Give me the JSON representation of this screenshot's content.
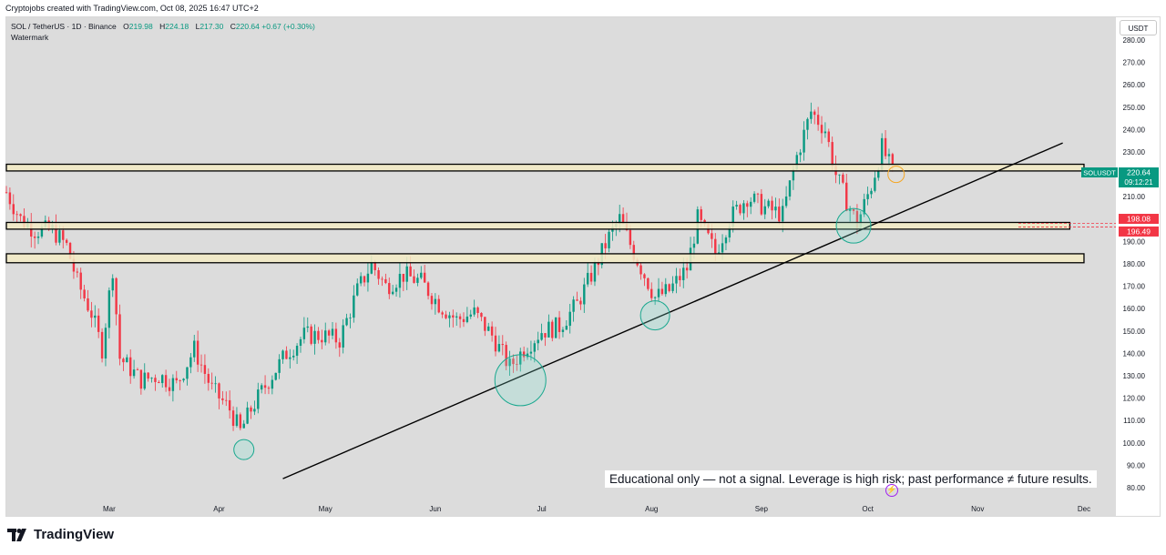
{
  "header": {
    "created_by": "Cryptojobs created with TradingView.com, Oct 08, 2025 16:47 UTC+2",
    "symbol_desc": "SOL / TetherUS · 1D · Binance",
    "o_label": "O",
    "o_value": "219.98",
    "h_label": "H",
    "h_value": "224.18",
    "l_label": "L",
    "l_value": "217.30",
    "c_label": "C",
    "c_value": "220.64 +0.67 (+0.30%)",
    "watermark_label": "Watermark"
  },
  "currency_button": "USDT",
  "disclaimer": "Educational only — not a signal. Leverage is high risk; past performance ≠ future results.",
  "brand": "TradingView",
  "colors": {
    "up": "#089981",
    "down": "#f23645",
    "zone_fill": "#f3ebc4",
    "plot_bg": "#dcdcdc",
    "alert_red": "#f23645"
  },
  "icons": {
    "bolt": "lightning-icon",
    "logo": "tradingview-logo-icon"
  },
  "chart_data": {
    "type": "candlestick",
    "symbol": "SOLUSDT",
    "ylim": [
      80,
      280
    ],
    "y_ticks": [
      "280.00",
      "270.00",
      "260.00",
      "250.00",
      "240.00",
      "230.00",
      "220.00",
      "210.00",
      "200.00",
      "190.00",
      "180.00",
      "170.00",
      "160.00",
      "150.00",
      "140.00",
      "130.00",
      "120.00",
      "110.00",
      "100.00",
      "90.00",
      "80.00"
    ],
    "x_ticks": [
      "Mar",
      "Apr",
      "May",
      "Jun",
      "Jul",
      "Aug",
      "Sep",
      "Oct",
      "Nov",
      "Dec"
    ],
    "x_tick_dates": [
      "2025-03-01",
      "2025-04-01",
      "2025-05-01",
      "2025-06-01",
      "2025-07-01",
      "2025-08-01",
      "2025-09-01",
      "2025-10-01",
      "2025-11-01",
      "2025-12-01"
    ],
    "x_range": [
      "2025-01-31",
      "2025-12-10"
    ],
    "price_path": [
      [
        "2025-01-31",
        212
      ],
      [
        "2025-02-04",
        200
      ],
      [
        "2025-02-08",
        195
      ],
      [
        "2025-02-13",
        195
      ],
      [
        "2025-02-17",
        188
      ],
      [
        "2025-02-20",
        172
      ],
      [
        "2025-02-24",
        158
      ],
      [
        "2025-02-27",
        142
      ],
      [
        "2025-03-02",
        178
      ],
      [
        "2025-03-04",
        138
      ],
      [
        "2025-03-10",
        128
      ],
      [
        "2025-03-15",
        130
      ],
      [
        "2025-03-20",
        126
      ],
      [
        "2025-03-25",
        142
      ],
      [
        "2025-03-30",
        124
      ],
      [
        "2025-04-04",
        115
      ],
      [
        "2025-04-07",
        105
      ],
      [
        "2025-04-10",
        115
      ],
      [
        "2025-04-15",
        128
      ],
      [
        "2025-04-20",
        140
      ],
      [
        "2025-04-25",
        148
      ],
      [
        "2025-04-30",
        148
      ],
      [
        "2025-05-05",
        146
      ],
      [
        "2025-05-10",
        168
      ],
      [
        "2025-05-14",
        180
      ],
      [
        "2025-05-18",
        170
      ],
      [
        "2025-05-23",
        175
      ],
      [
        "2025-05-28",
        172
      ],
      [
        "2025-06-02",
        162
      ],
      [
        "2025-06-07",
        155
      ],
      [
        "2025-06-12",
        158
      ],
      [
        "2025-06-17",
        148
      ],
      [
        "2025-06-22",
        134
      ],
      [
        "2025-06-26",
        142
      ],
      [
        "2025-07-01",
        150
      ],
      [
        "2025-07-06",
        152
      ],
      [
        "2025-07-11",
        162
      ],
      [
        "2025-07-15",
        175
      ],
      [
        "2025-07-20",
        192
      ],
      [
        "2025-07-23",
        200
      ],
      [
        "2025-07-27",
        185
      ],
      [
        "2025-08-02",
        165
      ],
      [
        "2025-08-06",
        168
      ],
      [
        "2025-08-11",
        178
      ],
      [
        "2025-08-14",
        200
      ],
      [
        "2025-08-19",
        185
      ],
      [
        "2025-08-23",
        200
      ],
      [
        "2025-08-28",
        210
      ],
      [
        "2025-09-02",
        205
      ],
      [
        "2025-09-07",
        202
      ],
      [
        "2025-09-11",
        228
      ],
      [
        "2025-09-15",
        248
      ],
      [
        "2025-09-19",
        240
      ],
      [
        "2025-09-22",
        220
      ],
      [
        "2025-09-25",
        208
      ],
      [
        "2025-09-28",
        198
      ],
      [
        "2025-10-02",
        215
      ],
      [
        "2025-10-05",
        232
      ],
      [
        "2025-10-08",
        221
      ]
    ],
    "zones": [
      {
        "top": 224.5,
        "bottom": 221.5,
        "end": "2025-12-01"
      },
      {
        "top": 198.5,
        "bottom": 195.5,
        "end": "2025-11-27"
      },
      {
        "top": 184.5,
        "bottom": 180.5,
        "end": "2025-12-01"
      }
    ],
    "trendline": [
      [
        "2025-04-19",
        84
      ],
      [
        "2025-11-25",
        234
      ]
    ],
    "circles": [
      {
        "date": "2025-04-08",
        "price": 97
      },
      {
        "date": "2025-06-25",
        "price": 128
      },
      {
        "date": "2025-08-02",
        "price": 157
      },
      {
        "date": "2025-09-27",
        "price": 197
      },
      {
        "date": "2025-10-09",
        "price": 220
      }
    ],
    "last_price": {
      "symbol": "SOLUSDT",
      "value": "220.64",
      "countdown": "09:12:21",
      "price": 220.64
    },
    "alert_levels": [
      {
        "label": "198.08",
        "price": 198.08
      },
      {
        "label": "196.49",
        "price": 196.49
      }
    ]
  }
}
